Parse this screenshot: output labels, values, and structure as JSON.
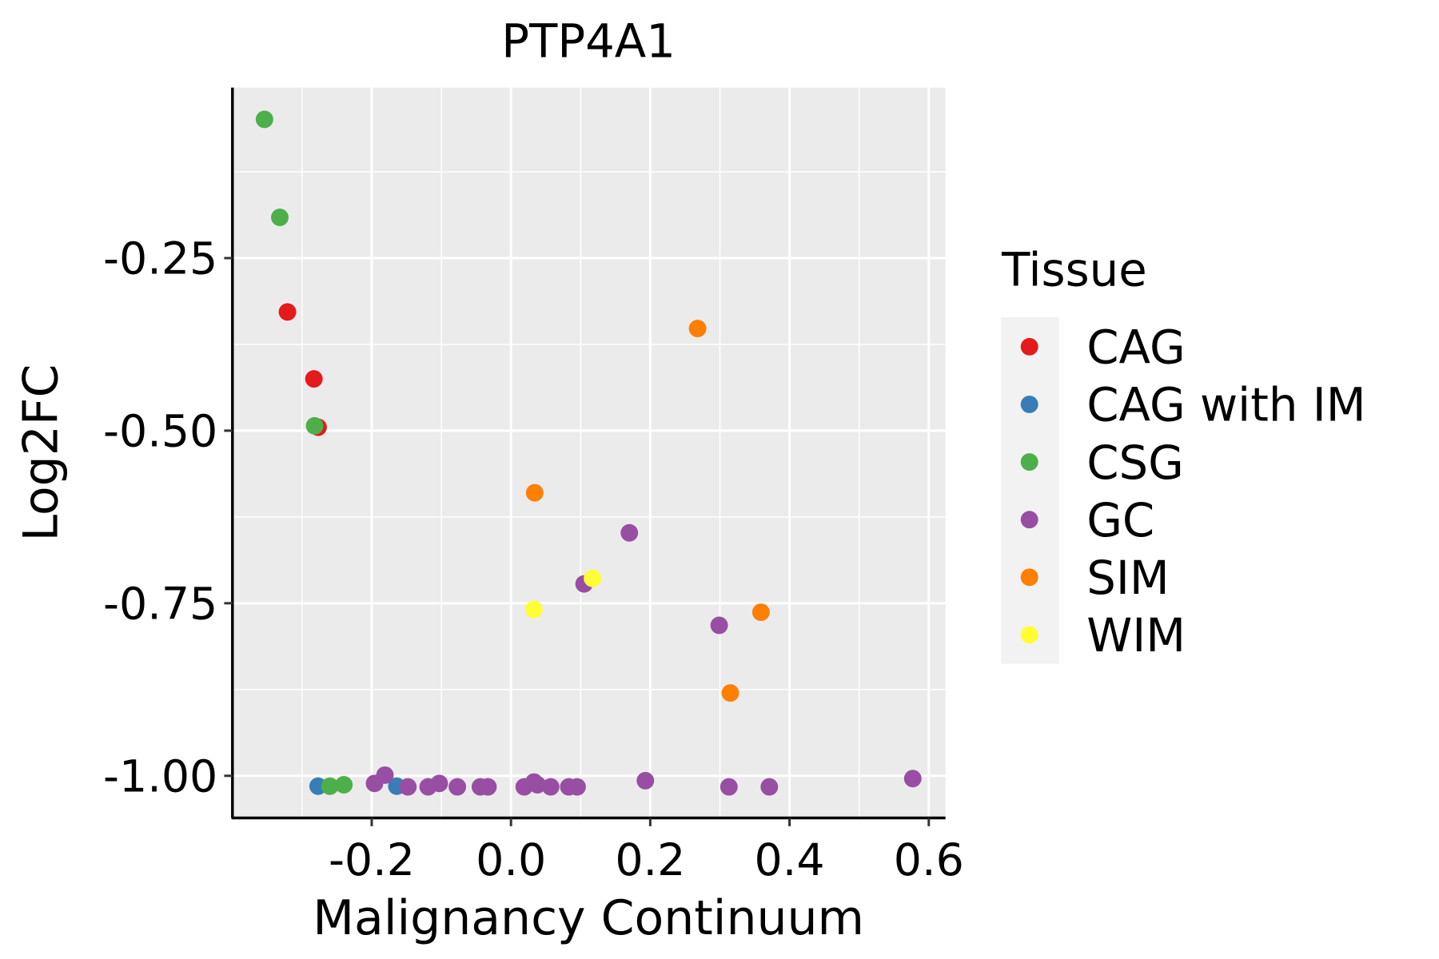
{
  "chart_data": {
    "type": "scatter",
    "title": "PTP4A1",
    "xlabel": "Malignancy Continuum",
    "ylabel": "Log2FC",
    "xlim": [
      -0.4,
      0.624
    ],
    "ylim": [
      -1.061,
      -0.003
    ],
    "xticks": [
      -0.2,
      0.0,
      0.2,
      0.4,
      0.6
    ],
    "xtick_labels": [
      "-0.2",
      "0.0",
      "0.2",
      "0.4",
      "0.6"
    ],
    "yticks": [
      -0.25,
      -0.5,
      -0.75,
      -1.0
    ],
    "ytick_labels": [
      "-0.25",
      "-0.50",
      "-0.75",
      "-1.00"
    ],
    "grid": true,
    "legend": {
      "title": "Tissue",
      "placement": "right"
    },
    "series": [
      {
        "name": "CAG",
        "color": "#e41a1c",
        "points": [
          [
            -0.321,
            -0.328
          ],
          [
            -0.283,
            -0.425
          ],
          [
            -0.277,
            -0.495
          ]
        ]
      },
      {
        "name": "CAG with IM",
        "color": "#377eb8",
        "points": [
          [
            -0.277,
            -1.015
          ],
          [
            -0.164,
            -1.015
          ]
        ]
      },
      {
        "name": "CSG",
        "color": "#4daf4a",
        "points": [
          [
            -0.354,
            -0.049
          ],
          [
            -0.332,
            -0.191
          ],
          [
            -0.282,
            -0.493
          ],
          [
            -0.26,
            -1.015
          ],
          [
            -0.24,
            -1.013
          ]
        ]
      },
      {
        "name": "GC",
        "color": "#984ea3",
        "points": [
          [
            0.17,
            -0.648
          ],
          [
            0.105,
            -0.722
          ],
          [
            0.299,
            -0.782
          ],
          [
            0.577,
            -1.004
          ],
          [
            0.193,
            -1.007
          ],
          [
            0.313,
            -1.016
          ],
          [
            0.371,
            -1.016
          ],
          [
            -0.196,
            -1.011
          ],
          [
            -0.181,
            -0.999
          ],
          [
            -0.148,
            -1.016
          ],
          [
            -0.119,
            -1.016
          ],
          [
            -0.103,
            -1.011
          ],
          [
            -0.077,
            -1.016
          ],
          [
            -0.044,
            -1.016
          ],
          [
            -0.033,
            -1.016
          ],
          [
            0.019,
            -1.016
          ],
          [
            0.033,
            -1.009
          ],
          [
            0.038,
            -1.013
          ],
          [
            0.057,
            -1.016
          ],
          [
            0.083,
            -1.016
          ],
          [
            0.095,
            -1.016
          ]
        ]
      },
      {
        "name": "SIM",
        "color": "#ff7f00",
        "points": [
          [
            0.268,
            -0.352
          ],
          [
            0.034,
            -0.59
          ],
          [
            0.359,
            -0.763
          ],
          [
            0.315,
            -0.88
          ]
        ]
      },
      {
        "name": "WIM",
        "color": "#ffff33",
        "points": [
          [
            0.117,
            -0.714
          ],
          [
            0.033,
            -0.759
          ]
        ]
      }
    ]
  }
}
